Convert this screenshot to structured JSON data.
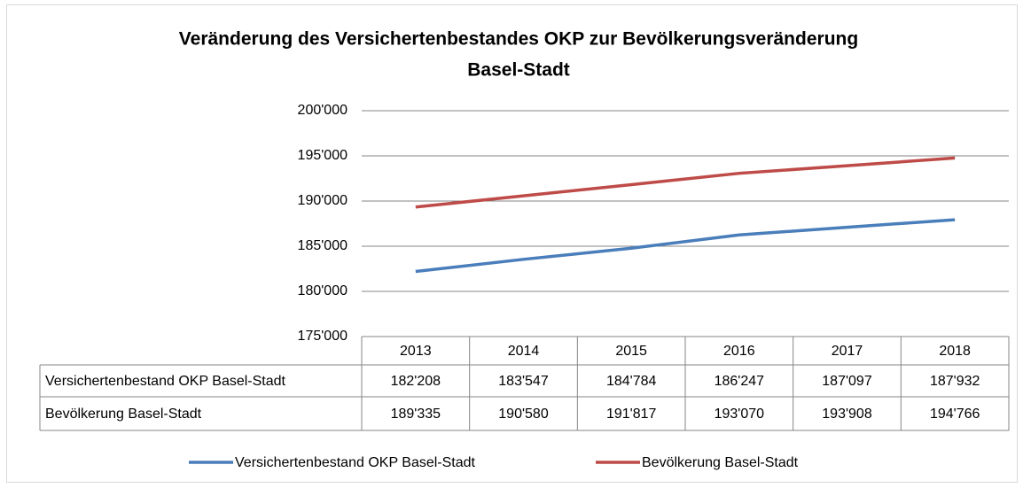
{
  "chart_data": {
    "type": "line",
    "title": [
      "Veränderung des Versichertenbestandes OKP zur Bevölkerungsveränderung",
      "Basel-Stadt"
    ],
    "categories": [
      "2013",
      "2014",
      "2015",
      "2016",
      "2017",
      "2018"
    ],
    "series": [
      {
        "name": "Versichertenbestand OKP Basel-Stadt",
        "color": "#4a7ebb",
        "values": [
          182208,
          183547,
          184784,
          186247,
          187097,
          187932
        ],
        "value_labels": [
          "182'208",
          "183'547",
          "184'784",
          "186'247",
          "187'097",
          "187'932"
        ]
      },
      {
        "name": "Bevölkerung Basel-Stadt",
        "color": "#be4b48",
        "values": [
          189335,
          190580,
          191817,
          193070,
          193908,
          194766
        ],
        "value_labels": [
          "189'335",
          "190'580",
          "191'817",
          "193'070",
          "193'908",
          "194'766"
        ]
      }
    ],
    "ylim": [
      175000,
      200000
    ],
    "yticks": [
      {
        "value": 175000,
        "label": "175'000"
      },
      {
        "value": 180000,
        "label": "180'000"
      },
      {
        "value": 185000,
        "label": "185'000"
      },
      {
        "value": 190000,
        "label": "190'000"
      },
      {
        "value": 195000,
        "label": "195'000"
      },
      {
        "value": 200000,
        "label": "200'000"
      }
    ],
    "grid": true,
    "legend": "bottom"
  }
}
